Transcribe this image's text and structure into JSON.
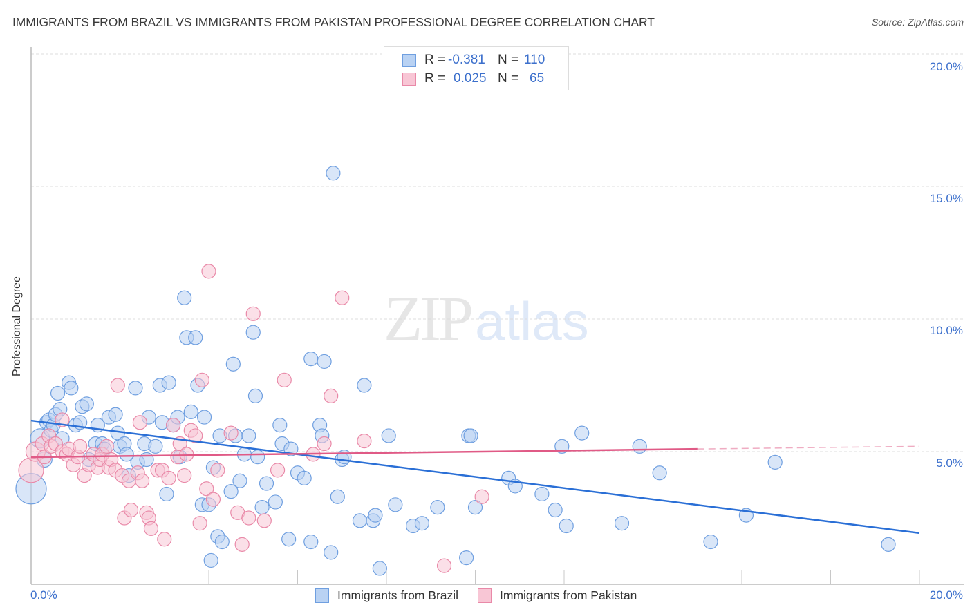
{
  "chart_data": {
    "type": "scatter",
    "title": "IMMIGRANTS FROM BRAZIL VS IMMIGRANTS FROM PAKISTAN PROFESSIONAL DEGREE CORRELATION CHART",
    "source": "Source: ZipAtlas.com",
    "xlabel": "",
    "ylabel": "Professional Degree",
    "xlim": [
      0,
      20
    ],
    "ylim": [
      0,
      20
    ],
    "x_tick_labels": [
      "0.0%",
      "20.0%"
    ],
    "y_tick_labels": [
      "5.0%",
      "10.0%",
      "15.0%",
      "20.0%"
    ],
    "y_ticks": [
      5,
      10,
      15,
      20
    ],
    "grid": true,
    "legend_position": "top-center (stats) and bottom-center (series)",
    "watermark": {
      "zip": "ZIP",
      "atlas": "atlas"
    },
    "stats": [
      {
        "series": "Immigrants from Brazil",
        "r_label": "R =",
        "r": "-0.381",
        "n_label": "N =",
        "n": "110"
      },
      {
        "series": "Immigrants from Pakistan",
        "r_label": "R =",
        "r": " 0.025",
        "n_label": "N =",
        "n": " 65"
      }
    ],
    "series": [
      {
        "name": "Immigrants from Brazil",
        "color": "#6f9fe0",
        "fill": "#b9d2f3",
        "trend": {
          "x0": 0,
          "y0": 6.17,
          "x1": 20,
          "y1": 1.93
        },
        "points": [
          [
            0.0,
            3.6,
            22
          ],
          [
            0.2,
            5.5,
            14
          ],
          [
            0.3,
            4.7,
            11
          ],
          [
            0.35,
            6.1,
            10
          ],
          [
            0.4,
            6.2,
            10
          ],
          [
            0.45,
            5.8,
            10
          ],
          [
            0.5,
            6.0,
            10
          ],
          [
            0.55,
            6.4,
            10
          ],
          [
            0.65,
            6.6,
            10
          ],
          [
            0.7,
            5.5,
            10
          ],
          [
            0.6,
            7.2,
            10
          ],
          [
            0.85,
            7.6,
            10
          ],
          [
            0.9,
            7.4,
            10
          ],
          [
            1.0,
            6.0,
            10
          ],
          [
            1.1,
            6.1,
            10
          ],
          [
            1.15,
            6.7,
            10
          ],
          [
            1.25,
            6.8,
            10
          ],
          [
            1.3,
            4.7,
            10
          ],
          [
            1.45,
            5.3,
            10
          ],
          [
            1.5,
            6.0,
            10
          ],
          [
            1.6,
            5.3,
            10
          ],
          [
            1.65,
            5.1,
            10
          ],
          [
            1.75,
            6.3,
            10
          ],
          [
            1.9,
            6.4,
            10
          ],
          [
            1.95,
            5.7,
            10
          ],
          [
            2.0,
            5.2,
            10
          ],
          [
            2.1,
            5.3,
            10
          ],
          [
            2.15,
            4.9,
            10
          ],
          [
            2.2,
            4.1,
            10
          ],
          [
            2.35,
            7.4,
            10
          ],
          [
            2.4,
            4.6,
            10
          ],
          [
            2.55,
            5.3,
            10
          ],
          [
            2.6,
            4.7,
            10
          ],
          [
            2.65,
            6.3,
            10
          ],
          [
            2.8,
            5.2,
            10
          ],
          [
            2.9,
            7.5,
            10
          ],
          [
            2.95,
            6.1,
            10
          ],
          [
            3.05,
            3.4,
            10
          ],
          [
            3.1,
            7.6,
            10
          ],
          [
            3.2,
            6.0,
            10
          ],
          [
            3.3,
            6.3,
            10
          ],
          [
            3.35,
            4.8,
            10
          ],
          [
            3.45,
            10.8,
            10
          ],
          [
            3.5,
            9.3,
            10
          ],
          [
            3.6,
            6.5,
            10
          ],
          [
            3.7,
            9.3,
            10
          ],
          [
            3.75,
            7.5,
            10
          ],
          [
            3.9,
            6.3,
            10
          ],
          [
            3.85,
            3.0,
            10
          ],
          [
            4.0,
            3.0,
            10
          ],
          [
            4.1,
            4.4,
            10
          ],
          [
            4.05,
            0.9,
            10
          ],
          [
            4.2,
            1.8,
            10
          ],
          [
            4.25,
            5.6,
            10
          ],
          [
            4.3,
            1.6,
            10
          ],
          [
            4.5,
            3.5,
            10
          ],
          [
            4.55,
            8.3,
            10
          ],
          [
            4.6,
            5.6,
            10
          ],
          [
            4.7,
            3.9,
            10
          ],
          [
            4.8,
            4.9,
            10
          ],
          [
            4.9,
            5.6,
            10
          ],
          [
            5.0,
            9.5,
            10
          ],
          [
            5.05,
            7.1,
            10
          ],
          [
            5.1,
            4.8,
            10
          ],
          [
            5.2,
            2.9,
            10
          ],
          [
            5.3,
            3.8,
            10
          ],
          [
            5.5,
            3.1,
            10
          ],
          [
            5.6,
            6.0,
            10
          ],
          [
            5.65,
            5.3,
            10
          ],
          [
            5.8,
            1.7,
            10
          ],
          [
            5.85,
            5.1,
            10
          ],
          [
            6.0,
            4.2,
            10
          ],
          [
            6.15,
            4.0,
            10
          ],
          [
            6.3,
            8.5,
            10
          ],
          [
            6.3,
            1.6,
            10
          ],
          [
            6.5,
            6.0,
            10
          ],
          [
            6.55,
            5.6,
            10
          ],
          [
            6.6,
            8.4,
            10
          ],
          [
            6.75,
            1.2,
            10
          ],
          [
            6.8,
            15.5,
            10
          ],
          [
            6.9,
            3.3,
            10
          ],
          [
            7.0,
            4.7,
            10
          ],
          [
            7.05,
            4.8,
            10
          ],
          [
            7.4,
            2.4,
            10
          ],
          [
            7.5,
            7.5,
            10
          ],
          [
            7.7,
            2.4,
            10
          ],
          [
            7.75,
            2.6,
            10
          ],
          [
            7.85,
            0.6,
            10
          ],
          [
            8.05,
            5.6,
            10
          ],
          [
            8.2,
            3.0,
            10
          ],
          [
            8.6,
            2.2,
            10
          ],
          [
            8.8,
            2.3,
            10
          ],
          [
            9.15,
            2.9,
            10
          ],
          [
            9.8,
            1.0,
            10
          ],
          [
            9.85,
            5.6,
            10
          ],
          [
            9.9,
            5.6,
            10
          ],
          [
            10.0,
            2.9,
            10
          ],
          [
            10.75,
            4.0,
            10
          ],
          [
            10.9,
            3.7,
            10
          ],
          [
            11.5,
            3.4,
            10
          ],
          [
            11.8,
            2.8,
            10
          ],
          [
            11.95,
            5.2,
            10
          ],
          [
            12.05,
            2.2,
            10
          ],
          [
            12.4,
            5.7,
            10
          ],
          [
            13.3,
            2.3,
            10
          ],
          [
            13.7,
            5.2,
            10
          ],
          [
            14.15,
            4.2,
            10
          ],
          [
            15.3,
            1.6,
            10
          ],
          [
            16.1,
            2.6,
            10
          ],
          [
            16.75,
            4.6,
            10
          ],
          [
            19.3,
            1.5,
            10
          ]
        ]
      },
      {
        "name": "Immigrants from Pakistan",
        "color": "#e989a8",
        "fill": "#f8c6d5",
        "trend": {
          "x0": 0,
          "y0": 4.79,
          "x1": 15,
          "y1": 5.1,
          "dashed_to": {
            "x": 20,
            "y": 5.2
          }
        },
        "points": [
          [
            0.0,
            4.3,
            18
          ],
          [
            0.1,
            5.0,
            14
          ],
          [
            0.25,
            5.3,
            10
          ],
          [
            0.3,
            4.8,
            10
          ],
          [
            0.4,
            5.6,
            10
          ],
          [
            0.45,
            5.2,
            10
          ],
          [
            0.55,
            5.3,
            10
          ],
          [
            0.7,
            5.0,
            10
          ],
          [
            0.7,
            6.2,
            10
          ],
          [
            0.8,
            4.9,
            10
          ],
          [
            0.85,
            5.1,
            10
          ],
          [
            0.95,
            4.5,
            10
          ],
          [
            1.05,
            4.8,
            10
          ],
          [
            1.1,
            5.2,
            10
          ],
          [
            1.2,
            4.1,
            10
          ],
          [
            1.3,
            4.5,
            10
          ],
          [
            1.4,
            4.9,
            10
          ],
          [
            1.5,
            4.4,
            10
          ],
          [
            1.55,
            4.7,
            10
          ],
          [
            1.6,
            4.9,
            10
          ],
          [
            1.7,
            5.2,
            10
          ],
          [
            1.75,
            4.4,
            10
          ],
          [
            1.8,
            4.7,
            10
          ],
          [
            1.9,
            4.3,
            10
          ],
          [
            1.95,
            7.5,
            10
          ],
          [
            2.05,
            4.1,
            10
          ],
          [
            2.1,
            2.5,
            10
          ],
          [
            2.2,
            3.9,
            10
          ],
          [
            2.25,
            2.8,
            10
          ],
          [
            2.4,
            4.2,
            10
          ],
          [
            2.45,
            6.1,
            10
          ],
          [
            2.5,
            3.9,
            10
          ],
          [
            2.6,
            2.7,
            10
          ],
          [
            2.65,
            2.5,
            10
          ],
          [
            2.7,
            2.1,
            10
          ],
          [
            2.85,
            4.3,
            10
          ],
          [
            2.95,
            4.3,
            10
          ],
          [
            3.0,
            1.7,
            10
          ],
          [
            3.1,
            4.0,
            10
          ],
          [
            3.2,
            6.0,
            10
          ],
          [
            3.3,
            4.8,
            10
          ],
          [
            3.35,
            5.3,
            10
          ],
          [
            3.45,
            4.1,
            10
          ],
          [
            3.5,
            4.9,
            10
          ],
          [
            3.6,
            5.8,
            10
          ],
          [
            3.7,
            5.6,
            10
          ],
          [
            3.8,
            2.3,
            10
          ],
          [
            3.85,
            7.7,
            10
          ],
          [
            3.95,
            3.6,
            10
          ],
          [
            4.0,
            11.8,
            10
          ],
          [
            4.1,
            3.2,
            10
          ],
          [
            4.2,
            4.3,
            10
          ],
          [
            4.5,
            5.7,
            10
          ],
          [
            4.65,
            2.7,
            10
          ],
          [
            4.75,
            1.5,
            10
          ],
          [
            4.9,
            2.5,
            10
          ],
          [
            5.0,
            10.2,
            10
          ],
          [
            5.25,
            2.4,
            10
          ],
          [
            5.55,
            4.3,
            10
          ],
          [
            5.7,
            7.7,
            10
          ],
          [
            6.35,
            4.9,
            10
          ],
          [
            6.6,
            5.3,
            10
          ],
          [
            6.75,
            7.1,
            10
          ],
          [
            7.0,
            10.8,
            10
          ],
          [
            7.5,
            5.4,
            10
          ],
          [
            9.3,
            0.7,
            10
          ],
          [
            10.15,
            3.3,
            10
          ]
        ]
      }
    ]
  },
  "header": {
    "title": "IMMIGRANTS FROM BRAZIL VS IMMIGRANTS FROM PAKISTAN PROFESSIONAL DEGREE CORRELATION CHART",
    "source": "Source: ZipAtlas.com"
  },
  "axes": {
    "y_label": "Professional Degree",
    "y_ticks": [
      "20.0%",
      "15.0%",
      "10.0%",
      "5.0%"
    ],
    "x_left": "0.0%",
    "x_right": "20.0%"
  },
  "stats_legend": {
    "rows": [
      {
        "r_label": "R =",
        "r_value": "-0.381",
        "n_label": "N =",
        "n_value": "110"
      },
      {
        "r_label": "R =",
        "r_value": "0.025",
        "n_label": "N =",
        "n_value": "65"
      }
    ]
  },
  "bottom_legend": {
    "items": [
      {
        "label": "Immigrants from Brazil"
      },
      {
        "label": "Immigrants from Pakistan"
      }
    ]
  },
  "watermark": {
    "zip": "ZIP",
    "atlas": "atlas"
  },
  "colors": {
    "brazil_stroke": "#6f9fe0",
    "brazil_fill": "#b9d2f3",
    "brazil_line": "#2a6fd6",
    "pakistan_stroke": "#e989a8",
    "pakistan_fill": "#f8c6d5",
    "pakistan_line": "#e05a86",
    "accent_text": "#3b6fcc"
  }
}
